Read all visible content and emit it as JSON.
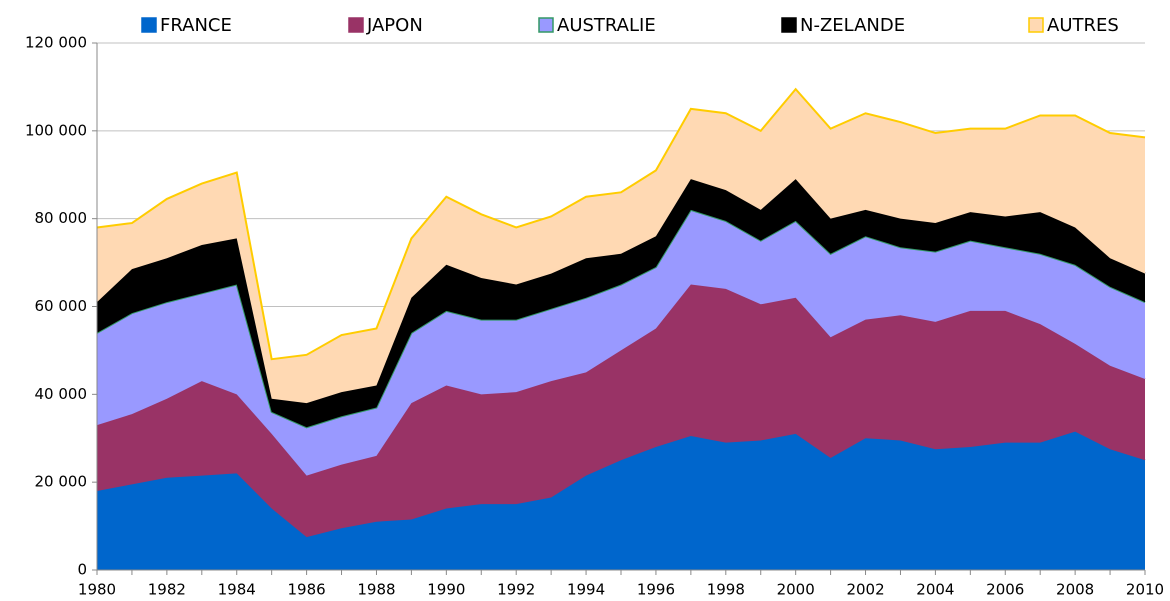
{
  "chart_data": {
    "type": "stacked_area",
    "x": [
      1980,
      1981,
      1982,
      1983,
      1984,
      1985,
      1986,
      1987,
      1988,
      1989,
      1990,
      1991,
      1992,
      1993,
      1994,
      1995,
      1996,
      1997,
      1998,
      1999,
      2000,
      2001,
      2002,
      2003,
      2004,
      2005,
      2006,
      2007,
      2008,
      2009,
      2010
    ],
    "series": [
      {
        "name": "FRANCE",
        "color": "#0066cc",
        "stroke": "#0066cc",
        "values": [
          18000,
          19500,
          21000,
          21500,
          22000,
          14000,
          7500,
          9500,
          11000,
          11500,
          14000,
          15000,
          15000,
          16500,
          21500,
          25000,
          28000,
          30500,
          29000,
          29500,
          31000,
          25500,
          30000,
          29500,
          27500,
          28000,
          29000,
          29000,
          31500,
          27500,
          25000
        ]
      },
      {
        "name": "JAPON",
        "color": "#993366",
        "stroke": "#993366",
        "values": [
          15000,
          16000,
          18000,
          21500,
          18000,
          17000,
          14000,
          14500,
          15000,
          26500,
          28000,
          25000,
          25500,
          26500,
          23500,
          25000,
          27000,
          34500,
          35000,
          31000,
          31000,
          27500,
          27000,
          28500,
          29000,
          31000,
          30000,
          27000,
          20000,
          19000,
          18500
        ]
      },
      {
        "name": "AUSTRALIE",
        "color": "#9999ff",
        "stroke": "#339966",
        "values": [
          21000,
          23000,
          22000,
          20000,
          25000,
          5000,
          11000,
          11000,
          11000,
          16000,
          17000,
          17000,
          16500,
          16500,
          17000,
          15000,
          14000,
          17000,
          15500,
          14500,
          17500,
          19000,
          19000,
          15500,
          16000,
          16000,
          14500,
          16000,
          18000,
          18000,
          17500
        ]
      },
      {
        "name": "N-ZELANDE",
        "color": "#000000",
        "stroke": "#000000",
        "values": [
          7000,
          10000,
          10000,
          11000,
          10500,
          3000,
          5500,
          5500,
          5000,
          8000,
          10500,
          9500,
          8000,
          8000,
          9000,
          7000,
          7000,
          7000,
          7000,
          7000,
          9500,
          8000,
          6000,
          6500,
          6500,
          6500,
          7000,
          9500,
          8500,
          6500,
          6500
        ]
      },
      {
        "name": "AUTRES",
        "color": "#ffd9b3",
        "stroke": "#ffcc00",
        "values": [
          17000,
          10500,
          13500,
          14000,
          15000,
          9000,
          11000,
          13000,
          13000,
          13500,
          15500,
          14500,
          13000,
          13000,
          14000,
          14000,
          15000,
          16000,
          17500,
          18000,
          20500,
          20500,
          22000,
          22000,
          20500,
          19000,
          20000,
          22000,
          25500,
          28500,
          31000
        ]
      }
    ],
    "xlim": [
      1980,
      2010
    ],
    "xticks": [
      1980,
      1982,
      1984,
      1986,
      1988,
      1990,
      1992,
      1994,
      1996,
      1998,
      2000,
      2002,
      2004,
      2006,
      2008,
      2010
    ],
    "ylim": [
      0,
      120000
    ],
    "yticks": [
      0,
      {
        "value": 20000,
        "label": "20 000"
      },
      {
        "value": 40000,
        "label": "40 000"
      },
      {
        "value": 60000,
        "label": "60 000"
      },
      {
        "value": 80000,
        "label": "80 000"
      },
      {
        "value": 100000,
        "label": "100 000"
      },
      {
        "value": 120000,
        "label": "120 000"
      }
    ],
    "grid": true,
    "legend": "top"
  }
}
